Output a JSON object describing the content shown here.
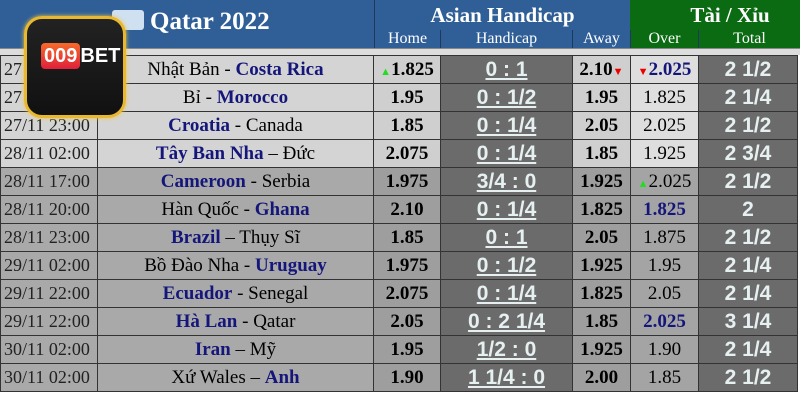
{
  "title": "Qatar 2022",
  "asian_handicap": "Asian Handicap",
  "tai_xiu": "Tài / Xỉu",
  "columns": {
    "home": "Home",
    "handicap": "Handicap",
    "away": "Away",
    "over": "Over",
    "total": "Total"
  },
  "logo": {
    "text": "009BET"
  },
  "colors": {
    "header_blue": "#2f5f96",
    "header_green": "#0b6b12",
    "favourite": "#15167a",
    "up": "#22dd22",
    "down": "#e00000"
  },
  "rows": [
    {
      "time": "27",
      "home_team": "Nhật Bản",
      "sep": " - ",
      "away_team": "Costa Rica",
      "fav": "away",
      "home": "1.825",
      "home_arrow": "up",
      "handicap": "0 : 1",
      "away": "2.10",
      "away_arrow": "down",
      "over": "2.025",
      "over_arrow": "down",
      "over_blue": true,
      "total": "2 1/2",
      "shade": "light"
    },
    {
      "time": "27",
      "home_team": "Bỉ",
      "sep": " - ",
      "away_team": "Morocco",
      "fav": "away",
      "home": "1.95",
      "handicap": "0 : 1/2",
      "away": "1.95",
      "over": "1.825",
      "total": "2 1/4",
      "shade": "light"
    },
    {
      "time": "27/11 23:00",
      "home_team": "Croatia",
      "sep": " - ",
      "away_team": "Canada",
      "fav": "home",
      "home": "1.85",
      "handicap": "0 : 1/4",
      "away": "2.05",
      "over": "2.025",
      "total": "2 1/2",
      "shade": "light"
    },
    {
      "time": "28/11 02:00",
      "home_team": "Tây Ban Nha",
      "sep": " – ",
      "away_team": "Đức",
      "fav": "home",
      "home": "2.075",
      "handicap": "0 : 1/4",
      "away": "1.85",
      "over": "1.925",
      "total": "2 3/4",
      "shade": "light"
    },
    {
      "time": "28/11 17:00",
      "home_team": "Cameroon",
      "sep": " - ",
      "away_team": "Serbia",
      "fav": "home",
      "home": "1.975",
      "handicap": "3/4 : 0",
      "away": "1.925",
      "over": "2.025",
      "over_arrow": "up",
      "total": "2 1/2",
      "shade": "dark"
    },
    {
      "time": "28/11 20:00",
      "home_team": "Hàn Quốc",
      "sep": " - ",
      "away_team": "Ghana",
      "fav": "away",
      "home": "2.10",
      "handicap": "0 : 1/4",
      "away": "1.825",
      "over": "1.825",
      "over_blue": true,
      "total": "2",
      "shade": "dark"
    },
    {
      "time": "28/11 23:00",
      "home_team": "Brazil",
      "sep": " – ",
      "away_team": "Thụy Sĩ",
      "fav": "home",
      "home": "1.85",
      "handicap": "0 : 1",
      "away": "2.05",
      "over": "1.875",
      "total": "2 1/2",
      "shade": "dark"
    },
    {
      "time": "29/11 02:00",
      "home_team": "Bồ Đào Nha",
      "sep": " - ",
      "away_team": "Uruguay",
      "fav": "away",
      "home": "1.975",
      "handicap": "0 : 1/2",
      "away": "1.925",
      "over": "1.95",
      "total": "2 1/4",
      "shade": "dark"
    },
    {
      "time": "29/11 22:00",
      "home_team": "Ecuador",
      "sep": " - ",
      "away_team": "Senegal",
      "fav": "home",
      "home": "2.075",
      "handicap": "0 : 1/4",
      "away": "1.825",
      "over": "2.05",
      "total": "2 1/4",
      "shade": "dark"
    },
    {
      "time": "29/11 22:00",
      "home_team": "Hà Lan",
      "sep": " - ",
      "away_team": "Qatar",
      "fav": "home",
      "home": "2.05",
      "handicap": "0 : 2 1/4",
      "away": "1.85",
      "over": "2.025",
      "over_blue": true,
      "total": "3 1/4",
      "shade": "dark"
    },
    {
      "time": "30/11 02:00",
      "home_team": "Iran",
      "sep": " – ",
      "away_team": "Mỹ",
      "fav": "home",
      "home": "1.95",
      "handicap": "1/2 : 0",
      "away": "1.925",
      "over": "1.90",
      "total": "2 1/4",
      "shade": "dark"
    },
    {
      "time": "30/11 02:00",
      "home_team": "Xứ Wales",
      "sep": " – ",
      "away_team": "Anh",
      "fav": "away",
      "home": "1.90",
      "handicap": "1 1/4 : 0",
      "away": "2.00",
      "over": "1.85",
      "total": "2 1/2",
      "shade": "dark"
    }
  ]
}
